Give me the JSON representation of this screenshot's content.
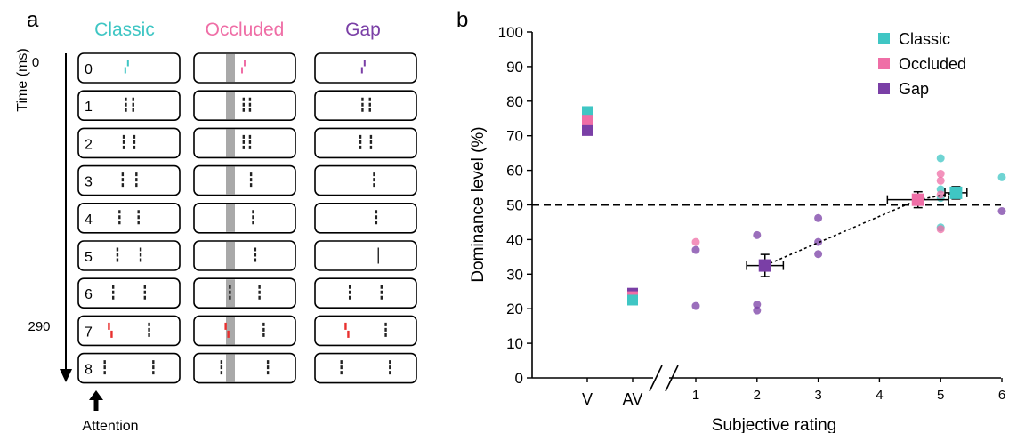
{
  "panel_a": {
    "label": "a",
    "time_axis_label": "Time (ms)",
    "time_ticks": [
      "0",
      "290"
    ],
    "attention_label": "Attention",
    "columns": [
      {
        "title": "Classic",
        "color": "#3fc6c4"
      },
      {
        "title": "Occluded",
        "color": "#ef6ea6"
      },
      {
        "title": "Gap",
        "color": "#7a3fa6"
      }
    ],
    "frames": [
      "0",
      "1",
      "2",
      "3",
      "4",
      "5",
      "6",
      "7",
      "8"
    ],
    "dark_bar_color": "#222222",
    "flash_bar_color": "#e8302f",
    "occluder_color": "#a9a9a9"
  },
  "panel_b": {
    "label": "b"
  },
  "chart_data": {
    "type": "scatter",
    "xlabel": "Subjective rating",
    "ylabel": "Dominance level (%)",
    "ylim": [
      0,
      100
    ],
    "yticks": [
      "0",
      "10",
      "20",
      "30",
      "40",
      "50",
      "60",
      "70",
      "80",
      "90",
      "100"
    ],
    "x_categorical_ticks": [
      "V",
      "AV"
    ],
    "xticks": [
      "1",
      "2",
      "3",
      "4",
      "5",
      "6"
    ],
    "xlim_numeric": [
      0.3,
      6.05
    ],
    "reference_line_y": 50,
    "legend_position": "top-right",
    "series": [
      {
        "name": "Classic",
        "color": "#3fc6c4",
        "V": 77,
        "AV": 22.5,
        "mean": {
          "x": 5.25,
          "y": 53.5,
          "xerr": 0.18,
          "yerr": 1.8
        },
        "points": [
          [
            5,
            63.5
          ],
          [
            5,
            54.5
          ],
          [
            5,
            52
          ],
          [
            5,
            43.5
          ],
          [
            6,
            58
          ]
        ]
      },
      {
        "name": "Occluded",
        "color": "#ef6ea6",
        "V": 74.5,
        "AV": 23.5,
        "mean": {
          "x": 4.63,
          "y": 51.5,
          "xerr": 0.5,
          "yerr": 2.3
        },
        "points": [
          [
            1,
            39.3
          ],
          [
            5,
            59
          ],
          [
            5,
            57
          ],
          [
            5,
            53
          ],
          [
            5,
            43
          ]
        ]
      },
      {
        "name": "Gap",
        "color": "#7a3fa6",
        "V": 71.5,
        "AV": 24.5,
        "mean": {
          "x": 2.13,
          "y": 32.5,
          "xerr": 0.3,
          "yerr": 3.2
        },
        "points": [
          [
            1,
            37
          ],
          [
            1,
            20.8
          ],
          [
            2,
            41.3
          ],
          [
            2,
            21.2
          ],
          [
            2,
            19.5
          ],
          [
            3,
            46.2
          ],
          [
            3,
            39.3
          ],
          [
            3,
            35.8
          ],
          [
            6,
            48.2
          ]
        ]
      }
    ],
    "trend_line": [
      [
        2.13,
        32.5
      ],
      [
        4.63,
        51.5
      ],
      [
        5.25,
        53.5
      ]
    ],
    "av_error": 1.2
  }
}
